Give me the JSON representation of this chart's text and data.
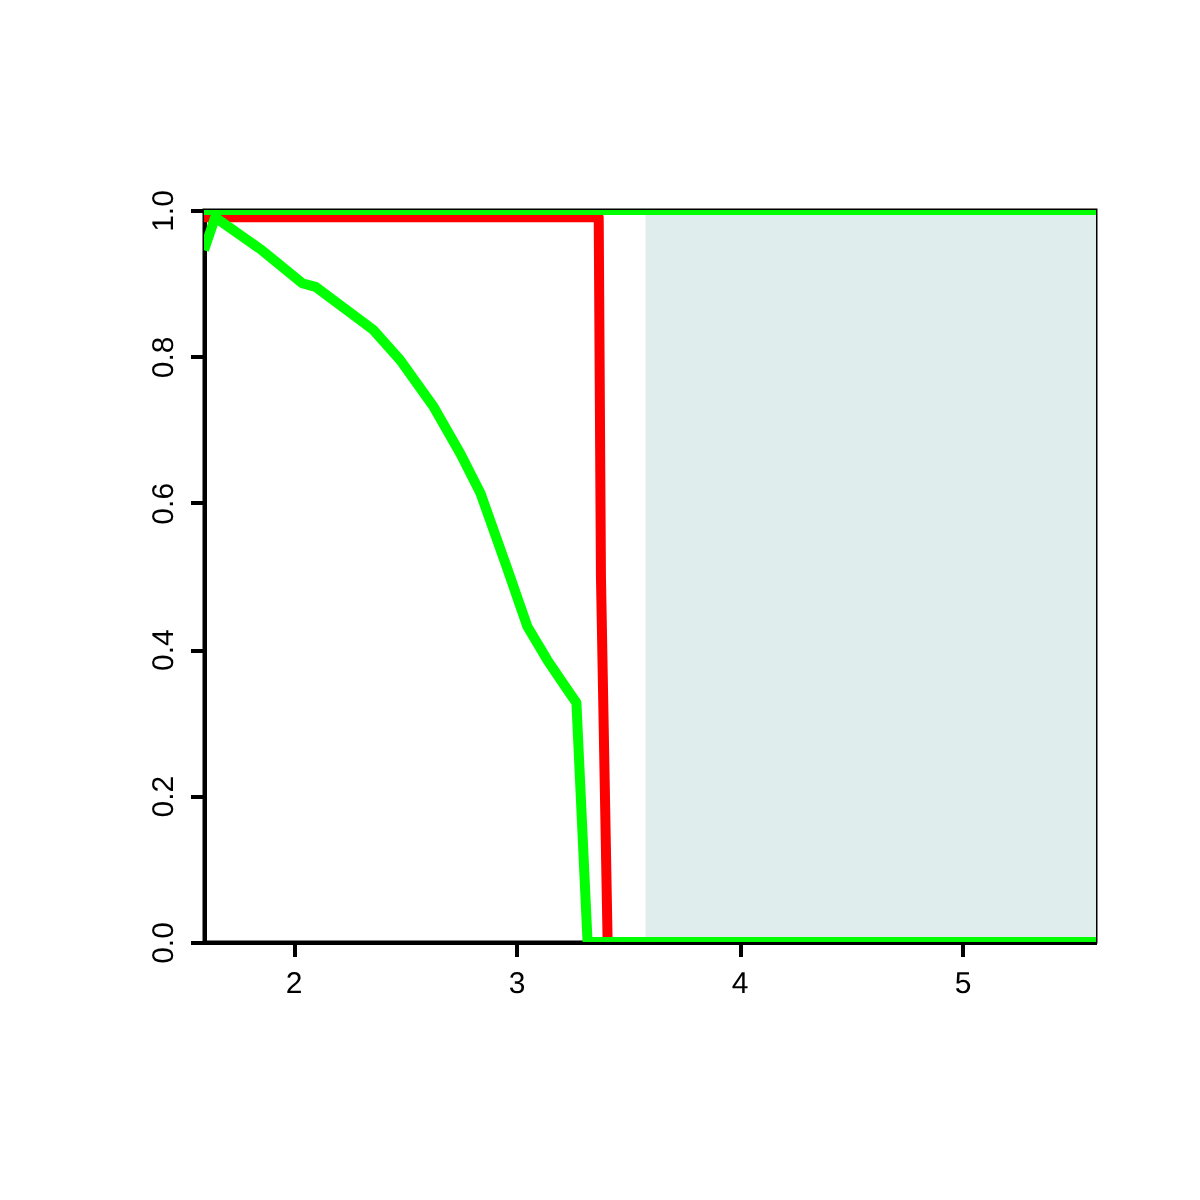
{
  "chart_data": {
    "type": "line",
    "xlim": [
      1.6,
      5.6
    ],
    "ylim": [
      0,
      1
    ],
    "xticks": [
      2,
      3,
      4,
      5
    ],
    "yticks": [
      {
        "value": 0,
        "label": "0.0"
      },
      {
        "value": 0.2,
        "label": "0.2"
      },
      {
        "value": 0.4,
        "label": "0.4"
      },
      {
        "value": 0.6,
        "label": "0.6"
      },
      {
        "value": 0.8,
        "label": "0.8"
      },
      {
        "value": 1,
        "label": "1.0"
      }
    ],
    "bands": [
      {
        "axis": "x",
        "from": 3.58,
        "to": 5.6,
        "color": "#e0eded"
      }
    ],
    "series": [
      {
        "color": "#ff0000",
        "x": [
          1.6,
          3.37,
          3.38,
          3.41,
          5.6
        ],
        "values": [
          0.99,
          0.99,
          0.5,
          0,
          0
        ]
      },
      {
        "color": "#00ff00",
        "x": [
          1.6,
          5.6
        ],
        "values": [
          1,
          1
        ]
      },
      {
        "color": "#00ff00",
        "x": [
          1.6,
          1.65,
          1.86,
          2.04,
          2.1,
          2.36,
          2.48,
          2.63,
          2.75,
          2.84,
          2.96,
          3.05,
          3.14,
          3.24,
          3.27,
          3.32,
          5.6
        ],
        "values": [
          0.945,
          0.99,
          0.945,
          0.9,
          0.895,
          0.836,
          0.795,
          0.731,
          0.667,
          0.613,
          0.51,
          0.431,
          0.385,
          0.34,
          0.327,
          0,
          0
        ]
      }
    ]
  }
}
